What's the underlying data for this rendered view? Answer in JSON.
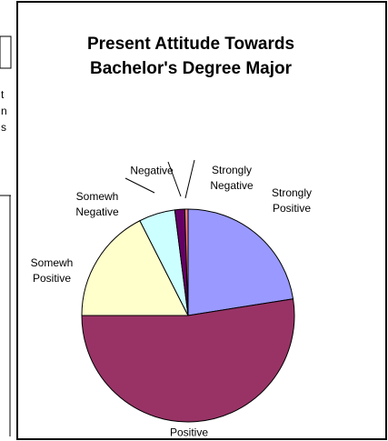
{
  "chart_data": {
    "type": "pie",
    "title": "Present Attitude Towards Bachelor's Degree Major",
    "categories": [
      "Strongly Positive",
      "Positive",
      "Somewh Positive",
      "Somewh Negative",
      "Negative",
      "Strongly Negative"
    ],
    "values": [
      22.5,
      52.5,
      17.5,
      5.5,
      1.5,
      0.5
    ],
    "colors": [
      "#9999ff",
      "#993366",
      "#ffffcc",
      "#ccffff",
      "#660066",
      "#ff8080"
    ]
  },
  "fragments": [
    "t",
    "n",
    "s"
  ]
}
